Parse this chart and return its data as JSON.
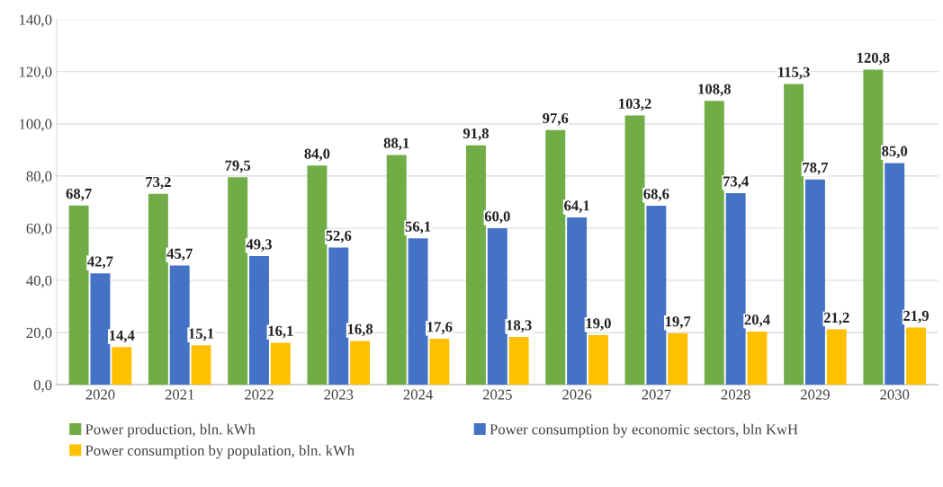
{
  "chart_data": {
    "type": "bar",
    "categories": [
      "2020",
      "2021",
      "2022",
      "2023",
      "2024",
      "2025",
      "2026",
      "2027",
      "2028",
      "2029",
      "2030"
    ],
    "series": [
      {
        "name": "Power production, bln. kWh",
        "color": "#70ad47",
        "values": [
          68.7,
          73.2,
          79.5,
          84.0,
          88.1,
          91.8,
          97.6,
          103.2,
          108.8,
          115.3,
          120.8
        ],
        "value_labels": [
          "68,7",
          "73,2",
          "79,5",
          "84,0",
          "88,1",
          "91,8",
          "97,6",
          "103,2",
          "108,8",
          "115,3",
          "120,8"
        ]
      },
      {
        "name": "Power consumption by economic sectors, bln KwH",
        "color": "#4472c4",
        "values": [
          42.7,
          45.7,
          49.3,
          52.6,
          56.1,
          60.0,
          64.1,
          68.6,
          73.4,
          78.7,
          85.0
        ],
        "value_labels": [
          "42,7",
          "45,7",
          "49,3",
          "52,6",
          "56,1",
          "60,0",
          "64,1",
          "68,6",
          "73,4",
          "78,7",
          "85,0"
        ]
      },
      {
        "name": "Power consumption by population, bln. kWh",
        "color": "#ffc000",
        "values": [
          14.4,
          15.1,
          16.1,
          16.8,
          17.6,
          18.3,
          19.0,
          19.7,
          20.4,
          21.2,
          21.9
        ],
        "value_labels": [
          "14,4",
          "15,1",
          "16,1",
          "16,8",
          "17,6",
          "18,3",
          "19,0",
          "19,7",
          "20,4",
          "21,2",
          "21,9"
        ]
      }
    ],
    "ylim": [
      0,
      140
    ],
    "yticks": [
      {
        "value": 0,
        "label": "0,0"
      },
      {
        "value": 20,
        "label": "20,0"
      },
      {
        "value": 40,
        "label": "40,0"
      },
      {
        "value": 60,
        "label": "60,0"
      },
      {
        "value": 80,
        "label": "80,0"
      },
      {
        "value": 100,
        "label": "100,0"
      },
      {
        "value": 120,
        "label": "120,0"
      },
      {
        "value": 140,
        "label": "140,0"
      }
    ],
    "grid": "y",
    "legend": "bottom"
  }
}
